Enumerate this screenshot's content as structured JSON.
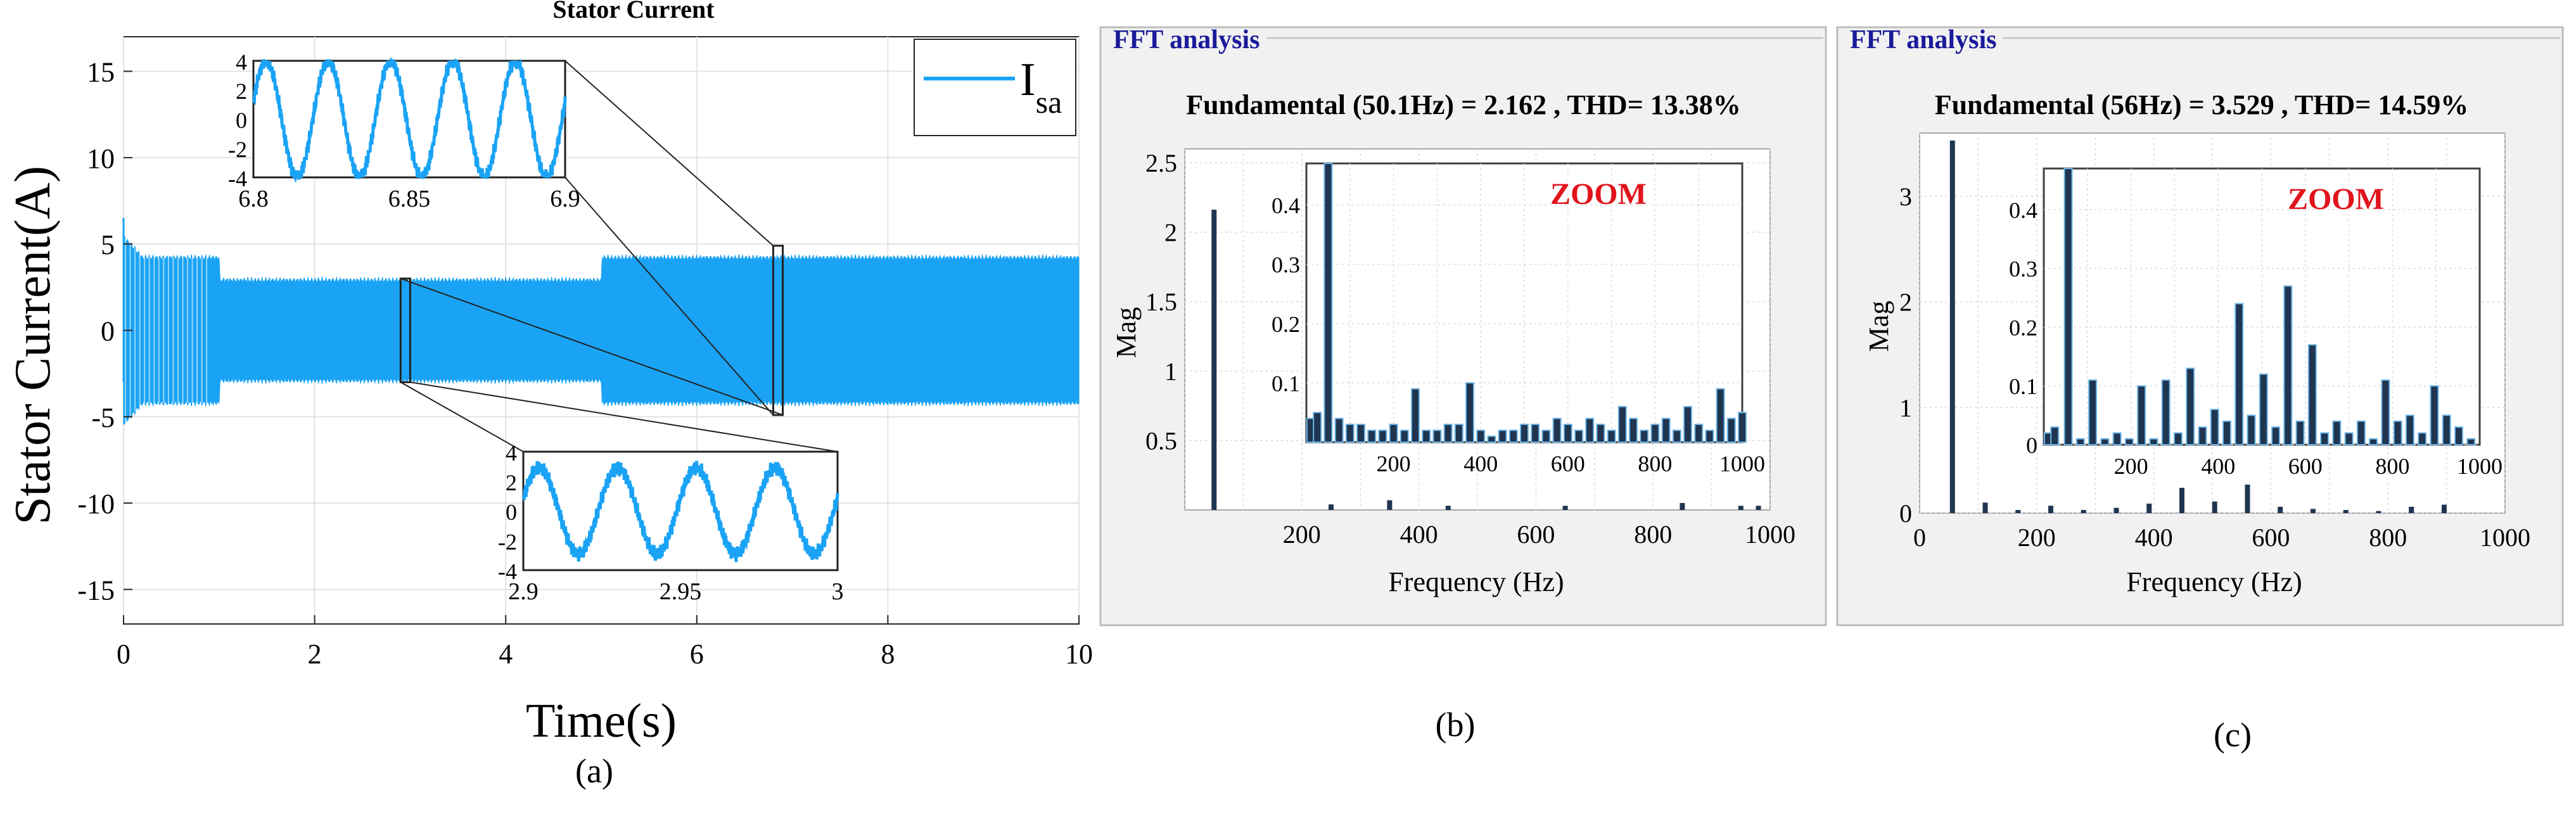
{
  "chart_data": [
    {
      "id": "a",
      "type": "line",
      "title": "Stator Current",
      "xlabel": "Time(s)",
      "ylabel": "Stator Current(A)",
      "xlim": [
        0,
        10
      ],
      "ylim": [
        -17,
        17
      ],
      "xticks": [
        0,
        2,
        4,
        6,
        8,
        10
      ],
      "yticks": [
        15,
        10,
        5,
        0,
        -5,
        -10,
        -15
      ],
      "grid": true,
      "legend": "I_sa",
      "legend_main": "I",
      "legend_sub": "sa",
      "legend_position": "top-right",
      "caption": "(a)",
      "segments": [
        {
          "t_start": 0,
          "t_end": 1,
          "amplitude": 4.2,
          "note": "startup transient"
        },
        {
          "t_start": 1,
          "t_end": 5,
          "amplitude": 2.9
        },
        {
          "t_start": 5,
          "t_end": 10,
          "amplitude": 4.2
        }
      ],
      "insets": [
        {
          "name": "zoom-top",
          "xlim": [
            6.8,
            6.9
          ],
          "ylim": [
            -4,
            4
          ],
          "xticks": [
            "6.8",
            "6.85",
            "6.9"
          ],
          "yticks": [
            "4",
            "2",
            "0",
            "-2",
            "-4"
          ],
          "amplitude": 4,
          "cycles": 5
        },
        {
          "name": "zoom-bottom",
          "xlim": [
            2.9,
            3
          ],
          "ylim": [
            -4,
            4
          ],
          "xticks": [
            "2.9",
            "2.95",
            "3"
          ],
          "yticks": [
            "4",
            "2",
            "0",
            "-2",
            "-4"
          ],
          "amplitude": 2.9,
          "cycles": 4
        }
      ]
    },
    {
      "id": "b",
      "type": "bar",
      "panel_title": "FFT analysis",
      "title": "Fundamental (50.1Hz) = 2.162 , THD= 13.38%",
      "xlabel": "Frequency (Hz)",
      "ylabel": "Mag",
      "xlim": [
        0,
        1000
      ],
      "ylim": [
        0,
        2.6
      ],
      "xticks": [
        200,
        400,
        600,
        800,
        1000
      ],
      "yticks": [
        0.5,
        1,
        1.5,
        2,
        2.5
      ],
      "caption": "(b)",
      "x": [
        50.1,
        250,
        350,
        450,
        650,
        850,
        950,
        980
      ],
      "values": [
        2.162,
        0.04,
        0.07,
        0.03,
        0.03,
        0.05,
        0.03,
        0.03
      ],
      "zoom": {
        "label": "ZOOM",
        "xlim": [
          0,
          1000
        ],
        "ylim": [
          0,
          0.47
        ],
        "xticks": [
          200,
          400,
          600,
          800,
          1000
        ],
        "yticks": [
          0.1,
          0.2,
          0.3,
          0.4
        ],
        "x": [
          10,
          25,
          50,
          75,
          100,
          125,
          150,
          175,
          200,
          225,
          250,
          275,
          300,
          325,
          350,
          375,
          400,
          425,
          450,
          475,
          500,
          525,
          550,
          575,
          600,
          625,
          650,
          675,
          700,
          725,
          750,
          775,
          800,
          825,
          850,
          875,
          900,
          925,
          950,
          975,
          1000
        ],
        "values": [
          0.04,
          0.05,
          0.47,
          0.04,
          0.03,
          0.03,
          0.02,
          0.02,
          0.03,
          0.02,
          0.09,
          0.02,
          0.02,
          0.03,
          0.03,
          0.1,
          0.02,
          0.01,
          0.02,
          0.02,
          0.03,
          0.03,
          0.02,
          0.04,
          0.03,
          0.02,
          0.04,
          0.03,
          0.02,
          0.06,
          0.04,
          0.02,
          0.03,
          0.04,
          0.02,
          0.06,
          0.03,
          0.02,
          0.09,
          0.04,
          0.05
        ]
      }
    },
    {
      "id": "c",
      "type": "bar",
      "panel_title": "FFT analysis",
      "title": "Fundamental (56Hz) = 3.529 , THD= 14.59%",
      "xlabel": "Frequency (Hz)",
      "ylabel": "Mag",
      "xlim": [
        0,
        1000
      ],
      "ylim": [
        0,
        3.6
      ],
      "xticks": [
        0,
        200,
        400,
        600,
        800,
        1000
      ],
      "yticks": [
        0,
        1,
        2,
        3
      ],
      "caption": "(c)",
      "x": [
        56,
        112,
        168,
        224,
        280,
        336,
        392,
        448,
        504,
        560,
        616,
        672,
        728,
        784,
        840,
        896
      ],
      "values": [
        3.529,
        0.1,
        0.03,
        0.07,
        0.03,
        0.05,
        0.09,
        0.24,
        0.11,
        0.27,
        0.06,
        0.04,
        0.03,
        0.02,
        0.06,
        0.08
      ],
      "zoom": {
        "label": "ZOOM",
        "xlim": [
          0,
          1000
        ],
        "ylim": [
          0,
          0.47
        ],
        "xticks": [
          200,
          400,
          600,
          800,
          1000
        ],
        "yticks": [
          0,
          0.1,
          0.2,
          0.3,
          0.4
        ],
        "x": [
          10,
          25,
          56,
          84,
          112,
          140,
          168,
          196,
          224,
          252,
          280,
          308,
          336,
          364,
          392,
          420,
          448,
          476,
          504,
          532,
          560,
          588,
          616,
          644,
          672,
          700,
          728,
          756,
          784,
          812,
          840,
          868,
          896,
          924,
          952,
          980
        ],
        "values": [
          0.02,
          0.03,
          0.47,
          0.01,
          0.11,
          0.01,
          0.02,
          0.01,
          0.1,
          0.01,
          0.11,
          0.02,
          0.13,
          0.03,
          0.06,
          0.04,
          0.24,
          0.05,
          0.12,
          0.03,
          0.27,
          0.04,
          0.17,
          0.02,
          0.04,
          0.02,
          0.04,
          0.01,
          0.11,
          0.04,
          0.05,
          0.02,
          0.1,
          0.05,
          0.03,
          0.01
        ]
      }
    }
  ]
}
